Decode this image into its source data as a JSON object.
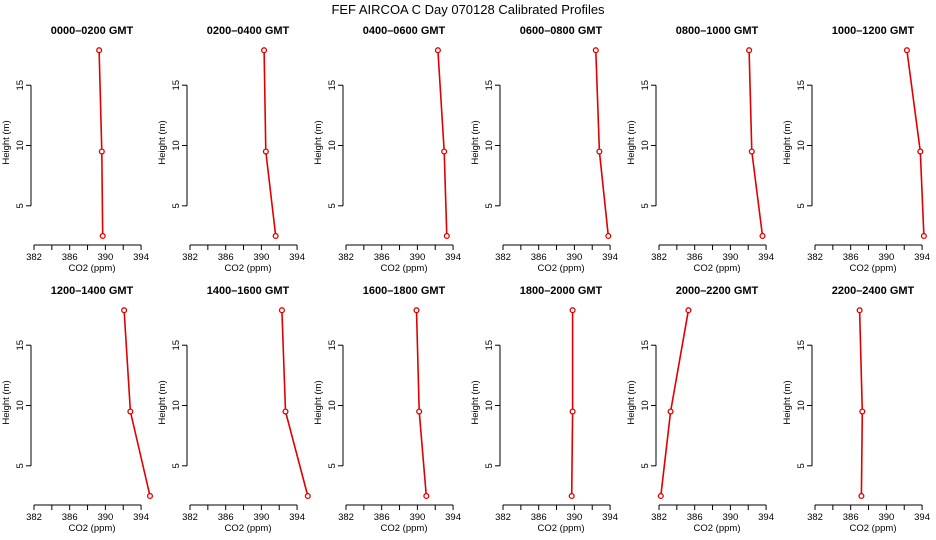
{
  "figure": {
    "title": "FEF AIRCOA C  Day 070128  Calibrated Profiles"
  },
  "colors": {
    "series": "#e00000",
    "axis": "#000000"
  },
  "chart_data": [
    {
      "type": "line",
      "title": "0000–0200 GMT",
      "xlabel": "CO2 (ppm)",
      "ylabel": "Height (m)",
      "xlim": [
        382,
        395
      ],
      "ylim": [
        2,
        18.5
      ],
      "xticks": [
        382,
        386,
        390,
        394
      ],
      "xticks_minor": [
        384,
        388,
        392
      ],
      "yticks": [
        5,
        10,
        15
      ],
      "series": [
        {
          "x": [
            389.7,
            389.6,
            389.3
          ],
          "y": [
            2.5,
            9.5,
            17.9
          ]
        }
      ]
    },
    {
      "type": "line",
      "title": "0200–0400 GMT",
      "xlabel": "CO2 (ppm)",
      "ylabel": "Height (m)",
      "xlim": [
        382,
        395
      ],
      "ylim": [
        2,
        18.5
      ],
      "xticks": [
        382,
        386,
        390,
        394
      ],
      "xticks_minor": [
        384,
        388,
        392
      ],
      "yticks": [
        5,
        10,
        15
      ],
      "series": [
        {
          "x": [
            391.6,
            390.5,
            390.3
          ],
          "y": [
            2.5,
            9.5,
            17.9
          ]
        }
      ]
    },
    {
      "type": "line",
      "title": "0400–0600 GMT",
      "xlabel": "CO2 (ppm)",
      "ylabel": "Height (m)",
      "xlim": [
        382,
        395
      ],
      "ylim": [
        2,
        18.5
      ],
      "xticks": [
        382,
        386,
        390,
        394
      ],
      "xticks_minor": [
        384,
        388,
        392
      ],
      "yticks": [
        5,
        10,
        15
      ],
      "series": [
        {
          "x": [
            393.3,
            393.0,
            392.3
          ],
          "y": [
            2.5,
            9.5,
            17.9
          ]
        }
      ]
    },
    {
      "type": "line",
      "title": "0600–0800 GMT",
      "xlabel": "CO2 (ppm)",
      "ylabel": "Height (m)",
      "xlim": [
        382,
        395
      ],
      "ylim": [
        2,
        18.5
      ],
      "xticks": [
        382,
        386,
        390,
        394
      ],
      "xticks_minor": [
        384,
        388,
        392
      ],
      "yticks": [
        5,
        10,
        15
      ],
      "series": [
        {
          "x": [
            393.8,
            392.8,
            392.4
          ],
          "y": [
            2.5,
            9.5,
            17.9
          ]
        }
      ]
    },
    {
      "type": "line",
      "title": "0800–1000 GMT",
      "xlabel": "CO2 (ppm)",
      "ylabel": "Height (m)",
      "xlim": [
        382,
        395
      ],
      "ylim": [
        2,
        18.5
      ],
      "xticks": [
        382,
        386,
        390,
        394
      ],
      "xticks_minor": [
        384,
        388,
        392
      ],
      "yticks": [
        5,
        10,
        15
      ],
      "series": [
        {
          "x": [
            393.6,
            392.4,
            392.1
          ],
          "y": [
            2.5,
            9.5,
            17.9
          ]
        }
      ]
    },
    {
      "type": "line",
      "title": "1000–1200 GMT",
      "xlabel": "CO2 (ppm)",
      "ylabel": "Height (m)",
      "xlim": [
        382,
        395
      ],
      "ylim": [
        2,
        18.5
      ],
      "xticks": [
        382,
        386,
        390,
        394
      ],
      "xticks_minor": [
        384,
        388,
        392
      ],
      "yticks": [
        5,
        10,
        15
      ],
      "series": [
        {
          "x": [
            394.2,
            393.8,
            392.3
          ],
          "y": [
            2.5,
            9.5,
            17.9
          ]
        }
      ]
    },
    {
      "type": "line",
      "title": "1200–1400 GMT",
      "xlabel": "CO2 (ppm)",
      "ylabel": "Height (m)",
      "xlim": [
        382,
        395
      ],
      "ylim": [
        2,
        18.5
      ],
      "xticks": [
        382,
        386,
        390,
        394
      ],
      "xticks_minor": [
        384,
        388,
        392
      ],
      "yticks": [
        5,
        10,
        15
      ],
      "series": [
        {
          "x": [
            395.0,
            392.8,
            392.1
          ],
          "y": [
            2.5,
            9.5,
            17.9
          ]
        }
      ]
    },
    {
      "type": "line",
      "title": "1400–1600 GMT",
      "xlabel": "CO2 (ppm)",
      "ylabel": "Height (m)",
      "xlim": [
        382,
        395
      ],
      "ylim": [
        2,
        18.5
      ],
      "xticks": [
        382,
        386,
        390,
        394
      ],
      "xticks_minor": [
        384,
        388,
        392
      ],
      "yticks": [
        5,
        10,
        15
      ],
      "series": [
        {
          "x": [
            395.2,
            392.7,
            392.3
          ],
          "y": [
            2.5,
            9.5,
            17.9
          ]
        }
      ]
    },
    {
      "type": "line",
      "title": "1600–1800 GMT",
      "xlabel": "CO2 (ppm)",
      "ylabel": "Height (m)",
      "xlim": [
        382,
        395
      ],
      "ylim": [
        2,
        18.5
      ],
      "xticks": [
        382,
        386,
        390,
        394
      ],
      "xticks_minor": [
        384,
        388,
        392
      ],
      "yticks": [
        5,
        10,
        15
      ],
      "series": [
        {
          "x": [
            391.0,
            390.2,
            389.9
          ],
          "y": [
            2.5,
            9.5,
            17.9
          ]
        }
      ]
    },
    {
      "type": "line",
      "title": "1800–2000 GMT",
      "xlabel": "CO2 (ppm)",
      "ylabel": "Height (m)",
      "xlim": [
        382,
        395
      ],
      "ylim": [
        2,
        18.5
      ],
      "xticks": [
        382,
        386,
        390,
        394
      ],
      "xticks_minor": [
        384,
        388,
        392
      ],
      "yticks": [
        5,
        10,
        15
      ],
      "series": [
        {
          "x": [
            389.7,
            389.8,
            389.8
          ],
          "y": [
            2.5,
            9.5,
            17.9
          ]
        }
      ]
    },
    {
      "type": "line",
      "title": "2000–2200 GMT",
      "xlabel": "CO2 (ppm)",
      "ylabel": "Height (m)",
      "xlim": [
        382,
        395
      ],
      "ylim": [
        2,
        18.5
      ],
      "xticks": [
        382,
        386,
        390,
        394
      ],
      "xticks_minor": [
        384,
        388,
        392
      ],
      "yticks": [
        5,
        10,
        15
      ],
      "series": [
        {
          "x": [
            382.2,
            383.3,
            385.3
          ],
          "y": [
            2.5,
            9.5,
            17.9
          ]
        }
      ]
    },
    {
      "type": "line",
      "title": "2200–2400 GMT",
      "xlabel": "CO2 (ppm)",
      "ylabel": "Height (m)",
      "xlim": [
        382,
        395
      ],
      "ylim": [
        2,
        18.5
      ],
      "xticks": [
        382,
        386,
        390,
        394
      ],
      "xticks_minor": [
        384,
        388,
        392
      ],
      "yticks": [
        5,
        10,
        15
      ],
      "series": [
        {
          "x": [
            387.2,
            387.3,
            387.0
          ],
          "y": [
            2.5,
            9.5,
            17.9
          ]
        }
      ]
    }
  ]
}
